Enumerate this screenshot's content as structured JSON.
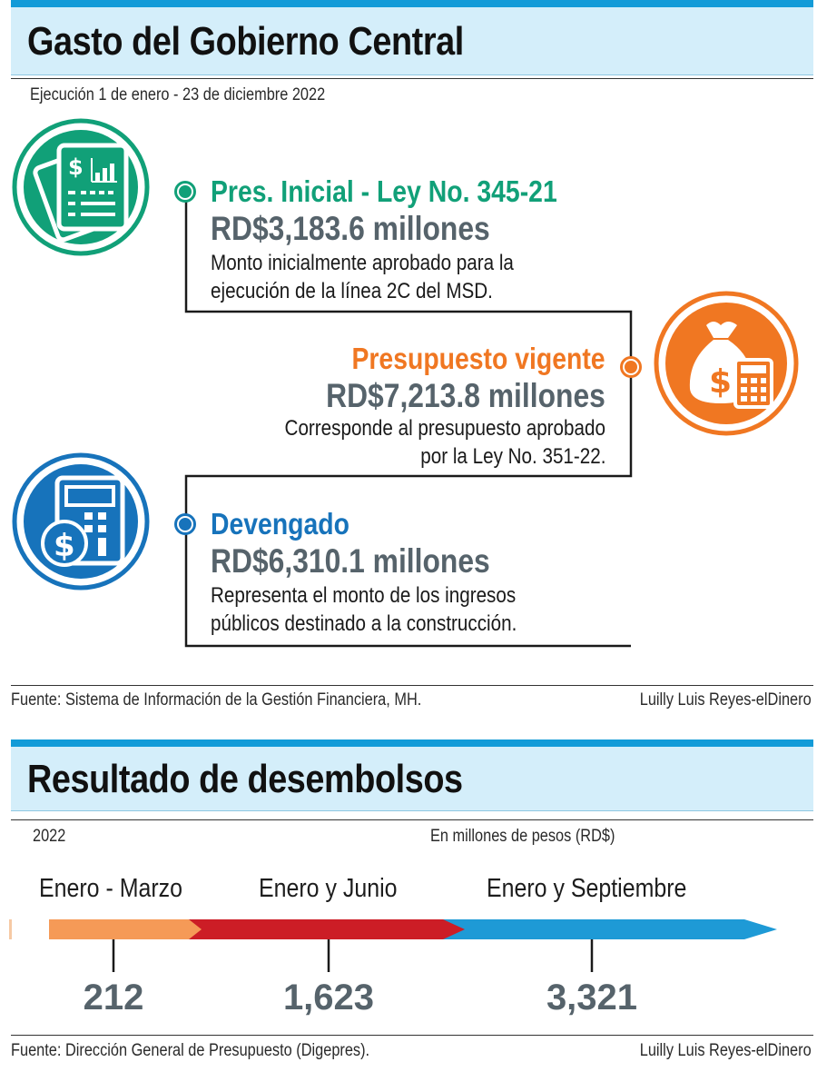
{
  "section1": {
    "title": "Gasto del Gobierno Central",
    "subtitle": "Ejecución 1 de enero - 23 de diciembre 2022",
    "items": [
      {
        "heading": "Pres. Inicial - Ley No. 345-21",
        "amount": "RD$3,183.6 millones",
        "desc_line1": "Monto inicialmente aprobado para la",
        "desc_line2": "ejecución de la línea 2C del MSD.",
        "color": "#11a078",
        "icon": "document-chart-icon"
      },
      {
        "heading": "Presupuesto vigente",
        "amount": "RD$7,213.8 millones",
        "desc_line1": "Corresponde al presupuesto aprobado",
        "desc_line2": "por la Ley No. 351-22.",
        "color": "#f07722",
        "icon": "money-bag-calculator-icon"
      },
      {
        "heading": "Devengado",
        "amount": "RD$6,310.1 millones",
        "desc_line1": "Representa el monto de los ingresos",
        "desc_line2": "públicos destinado a la construcción.",
        "color": "#1773bb",
        "icon": "calculator-coin-icon"
      }
    ],
    "source": "Fuente: Sistema de Información de la Gestión Financiera, MH.",
    "credit": "Luilly Luis Reyes-elDinero"
  },
  "section2": {
    "title": "Resultado de desembolsos",
    "year": "2022",
    "units": "En millones de pesos (RD$)",
    "periods": [
      {
        "label": "Enero - Marzo",
        "value": "212",
        "color": "#f59a57"
      },
      {
        "label": "Enero y Junio",
        "value": "1,623",
        "color": "#cc1d26"
      },
      {
        "label": "Enero y Septiembre",
        "value": "3,321",
        "color": "#1e9ad6"
      }
    ],
    "source": "Fuente: Dirección General de Presupuesto (Digepres).",
    "credit": "Luilly Luis Reyes-elDinero"
  }
}
